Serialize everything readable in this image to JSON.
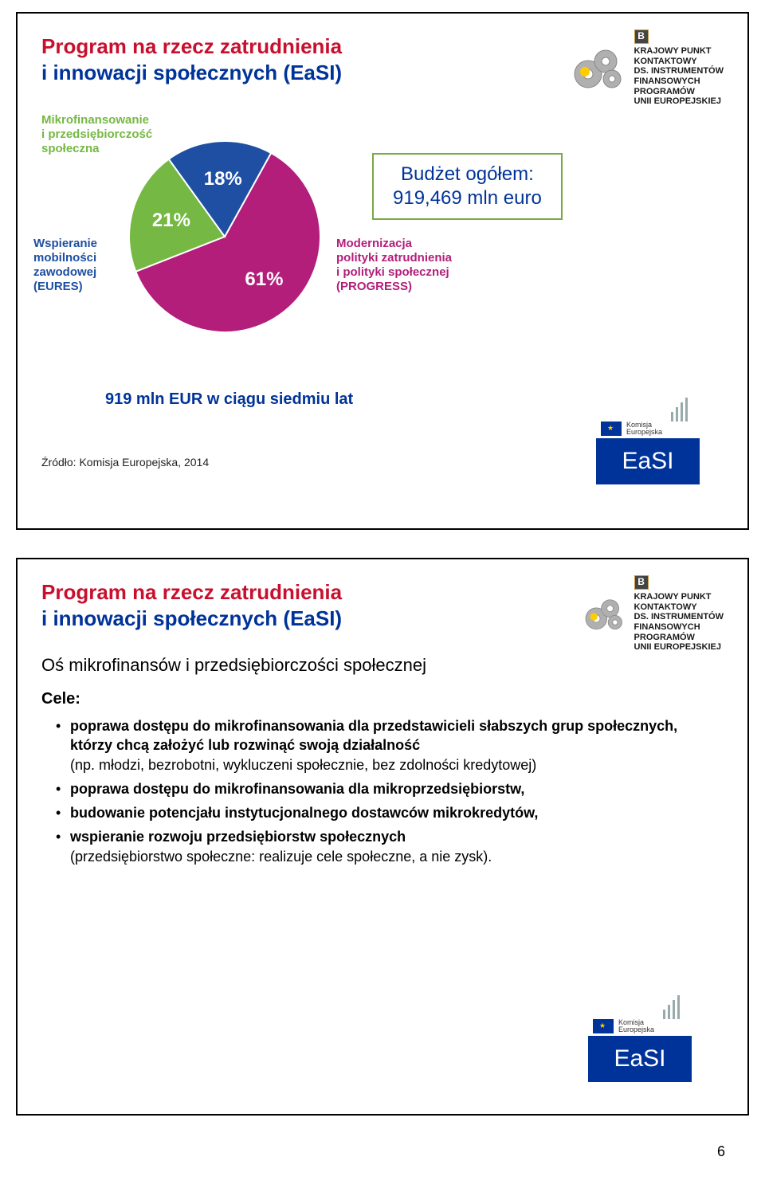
{
  "page_number": "6",
  "kpk": {
    "line1": "KRAJOWY PUNKT",
    "line2": "KONTAKTOWY",
    "line3": "DS. INSTRUMENTÓW",
    "line4": "FINANSOWYCH",
    "line5": "PROGRAMÓW",
    "line6": "UNII EUROPEJSKIEJ",
    "b_mark": "B"
  },
  "slide1": {
    "title_line1": "Program na rzecz zatrudnienia",
    "title_line2": "i innowacji społecznych (EaSI)",
    "budget_l1": "Budżet ogółem:",
    "budget_l2": "919,469 mln euro",
    "pie": {
      "type": "pie",
      "slices": [
        {
          "label_key": "s0",
          "value": 61,
          "pct": "61%",
          "color": "#b31e7b"
        },
        {
          "label_key": "s1",
          "value": 21,
          "pct": "21%",
          "color": "#75b843"
        },
        {
          "label_key": "s2",
          "value": 18,
          "pct": "18%",
          "color": "#1e4fa3"
        }
      ],
      "rotation_deg": 299,
      "value_fontsize": 24,
      "value_color": "#ffffff"
    },
    "labels": {
      "s1": {
        "l1": "Mikrofinansowanie",
        "l2": "i przedsiębiorczość",
        "l3": "społeczna",
        "color": "#75b843"
      },
      "s2": {
        "l1": "Wspieranie",
        "l2": "mobilności",
        "l3": "zawodowej",
        "l4": "(EURES)",
        "color": "#1e4fa3"
      },
      "s0": {
        "l1": "Modernizacja",
        "l2": "polityki zatrudnienia",
        "l3": "i polityki społecznej",
        "l4": "(PROGRESS)",
        "color": "#b31e7b"
      }
    },
    "footer": "919 mln EUR w ciągu siedmiu lat",
    "source": "Źródło: Komisja Europejska, 2014",
    "easi_text": "EaSI",
    "ec_label": "Komisja\nEuropejska"
  },
  "slide2": {
    "title_line1": "Program na rzecz zatrudnienia",
    "title_line2": "i innowacji społecznych (EaSI)",
    "subtitle": "Oś mikrofinansów i przedsiębiorczości społecznej",
    "cele_label": "Cele:",
    "goals": [
      {
        "bold": "poprawa dostępu do mikrofinansowania dla przedstawicieli słabszych grup społecznych, którzy chcą założyć lub rozwinąć swoją działalność",
        "note": "(np. młodzi, bezrobotni, wykluczeni społecznie, bez zdolności kredytowej)"
      },
      {
        "bold": "poprawa dostępu do mikrofinansowania dla mikroprzedsiębiorstw,"
      },
      {
        "bold": "budowanie potencjału instytucjonalnego dostawców mikrokredytów,"
      },
      {
        "bold": "wspieranie rozwoju przedsiębiorstw społecznych",
        "note": "(przedsiębiorstwo społeczne: realizuje cele społeczne, a nie zysk)."
      }
    ],
    "easi_text": "EaSI",
    "ec_label": "Komisja\nEuropejska"
  },
  "colors": {
    "title_red": "#c8102e",
    "title_blue": "#003399",
    "border_green": "#7aa842",
    "easi_bg": "#003399",
    "flag_bg": "#003399",
    "flag_star": "#ffcc00"
  }
}
